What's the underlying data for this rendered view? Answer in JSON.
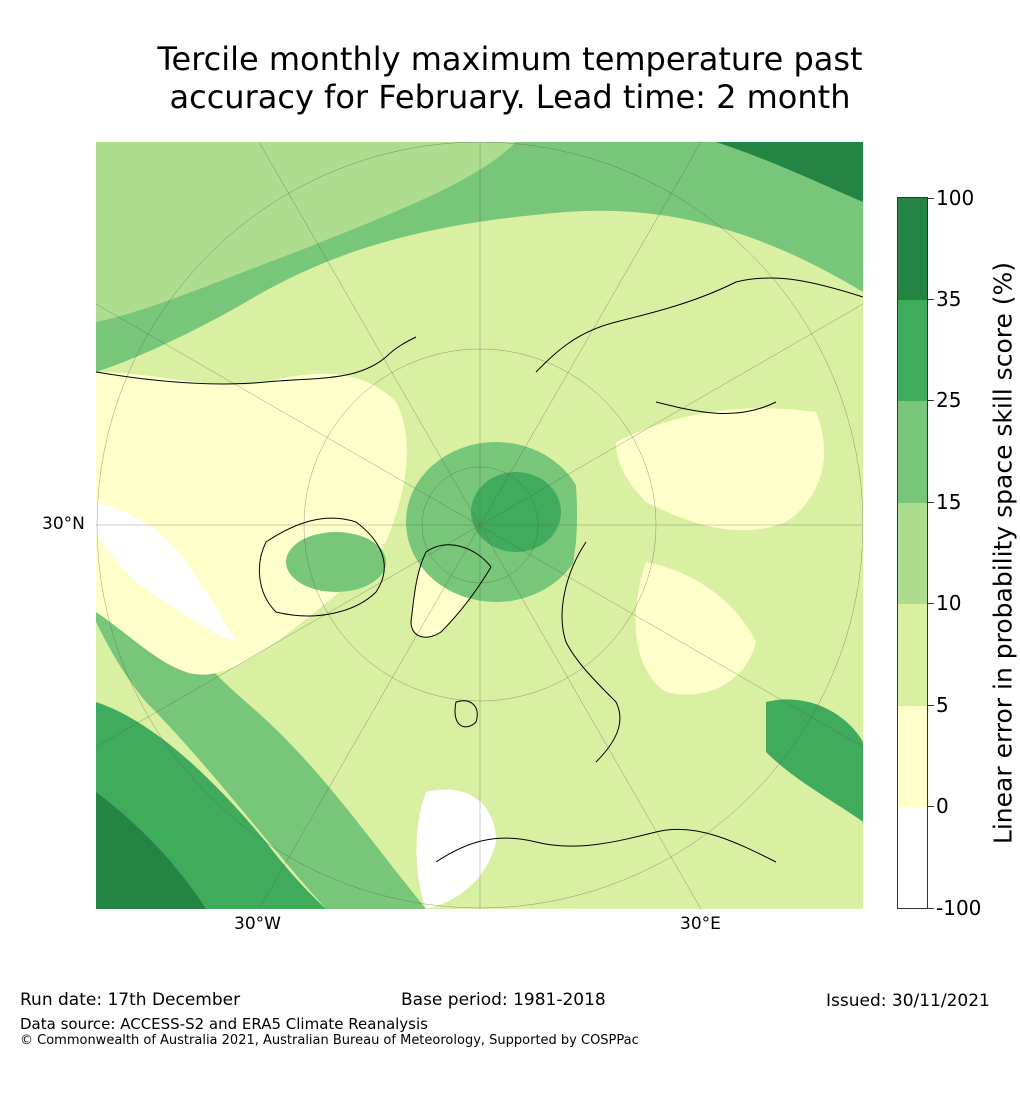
{
  "title_line1": "Tercile monthly maximum temperature past",
  "title_line2": "accuracy for February. Lead time: 2 month",
  "map": {
    "lat_label": "30°N",
    "lon_labels": [
      "30°W",
      "30°E"
    ],
    "projection": "North polar stereographic"
  },
  "colorbar": {
    "title": "Linear error in probability space skill score (%)",
    "ticks": [
      "100",
      "35",
      "25",
      "15",
      "10",
      "5",
      "0",
      "-100"
    ],
    "bins": [
      {
        "range": "35 to 100",
        "color": "#238443"
      },
      {
        "range": "25 to 35",
        "color": "#41ab5d"
      },
      {
        "range": "15 to 25",
        "color": "#78c679"
      },
      {
        "range": "10 to 15",
        "color": "#addd8e"
      },
      {
        "range": "5 to 10",
        "color": "#d9f0a3"
      },
      {
        "range": "0 to 5",
        "color": "#ffffcc"
      },
      {
        "range": "-100 to 0",
        "color": "#ffffff"
      }
    ]
  },
  "footer": {
    "run_date": "Run date: 17th December",
    "base_period": "Base period: 1981-2018",
    "issued": "Issued: 30/11/2021",
    "data_source": "Data source: ACCESS-S2 and ERA5 Climate Reanalysis",
    "copyright": "© Commonwealth of Australia 2021, Australian Bureau of Meteorology, Supported by COSPPac"
  }
}
